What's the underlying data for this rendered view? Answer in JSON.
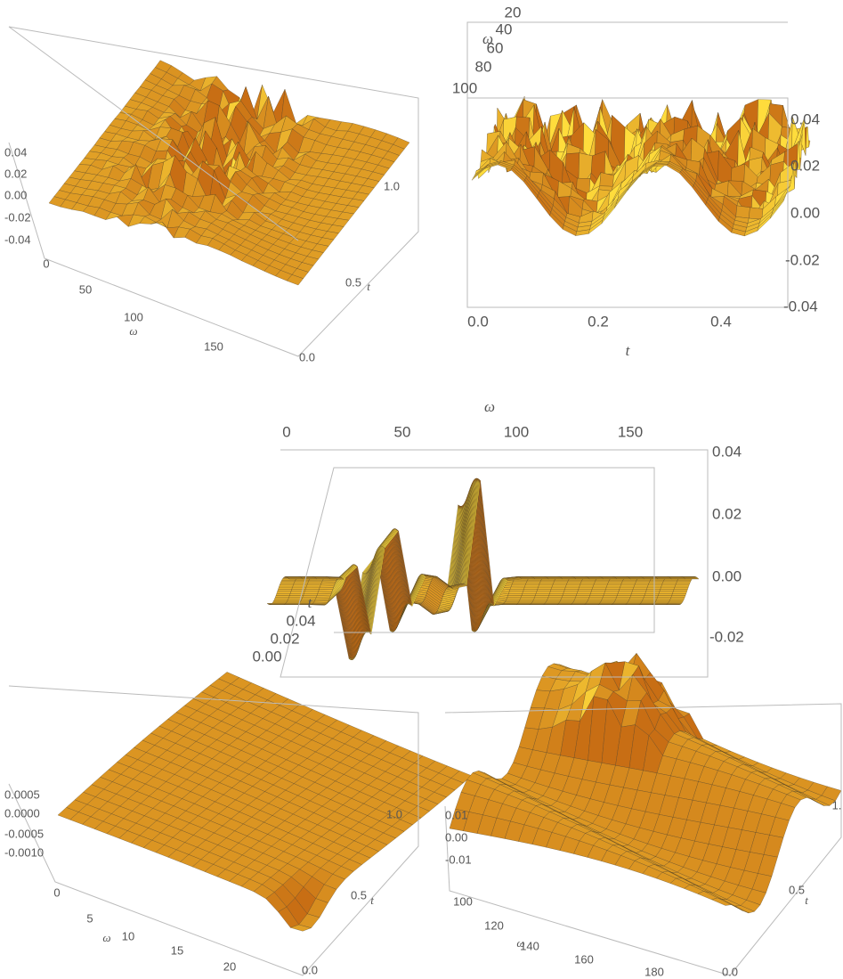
{
  "panels": [
    {
      "z_ticks": [
        "0.04",
        "0.02",
        "0.00",
        "-0.02",
        "-0.04"
      ],
      "omega_label": "ω",
      "omega_ticks": [
        "0",
        "50",
        "100",
        "150"
      ],
      "t_label": "t",
      "t_ticks": [
        "0.0",
        "0.5",
        "1.0"
      ]
    },
    {
      "z_ticks": [
        "0.04",
        "0.02",
        "0.00",
        "-0.02",
        "-0.04"
      ],
      "omega_label": "ω",
      "omega_ticks": [
        "20",
        "40",
        "60",
        "80",
        "100"
      ],
      "t_label": "t",
      "t_ticks": [
        "0.0",
        "0.2",
        "0.4"
      ]
    },
    {
      "z_ticks": [
        "0.04",
        "0.02",
        "0.00",
        "-0.02"
      ],
      "omega_label": "ω",
      "omega_ticks": [
        "0",
        "50",
        "100",
        "150"
      ],
      "t_label": "t",
      "t_ticks": [
        "0.04",
        "0.02",
        "0.00"
      ]
    },
    {
      "z_ticks": [
        "0.0005",
        "0.0000",
        "-0.0005",
        "-0.0010"
      ],
      "omega_label": "ω",
      "omega_ticks": [
        "0",
        "5",
        "10",
        "15",
        "20"
      ],
      "t_label": "t",
      "t_ticks": [
        "1.0",
        "0.5",
        "0.0"
      ]
    },
    {
      "z_ticks": [
        "0.01",
        "0.00",
        "-0.01"
      ],
      "omega_label": "ω",
      "omega_ticks": [
        "100",
        "120",
        "140",
        "160",
        "180"
      ],
      "t_label": "t",
      "t_ticks": [
        "1.",
        "0.5",
        "0.0"
      ]
    }
  ]
}
